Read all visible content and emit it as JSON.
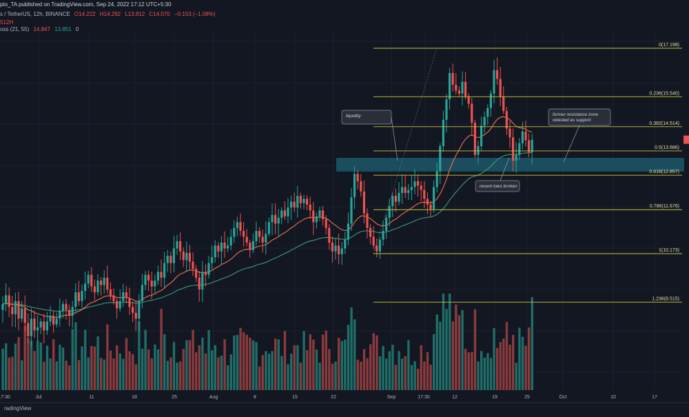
{
  "header": {
    "publish_line": "pto_TA published on TradingView.com, Sep 24, 2022 17:12 UTC+5:30",
    "symbol_line": "s / TetherUS, 12h, BINANCE",
    "ohlc": {
      "o": "O14.222",
      "h": "H14.292",
      "l": "L13.812",
      "c": "C14.070",
      "chg": "−0.153 (−1.08%)"
    },
    "indicator_value_line": "512H",
    "indicator_line": {
      "label": "oss (21, 55)",
      "v1": "14.847",
      "v2": "13.851",
      "v3": "0"
    }
  },
  "footer": {
    "brand": "radingView"
  },
  "colors": {
    "background": "#131722",
    "up": "#26a69a",
    "down": "#ef5350",
    "fib": "#c9c43e",
    "ema_fast": "#f0744f",
    "ema_slow": "#3f9c77",
    "zone": "#1c5767",
    "callout": "#2a2e39"
  },
  "chart_data": {
    "type": "candlestick",
    "timeframe": "12h",
    "x_tick_labels": [
      "17:30",
      "Jul",
      "11",
      "18",
      "25",
      "Aug",
      "8",
      "15",
      "22",
      "Sep",
      "17:30",
      "12",
      "19",
      "25",
      "Oct",
      "10",
      "17"
    ],
    "fib_levels": [
      {
        "ratio": 0,
        "price": 17.198,
        "label": "0(17.198)"
      },
      {
        "ratio": 0.236,
        "price": 15.54,
        "label": "0.236(15.540)"
      },
      {
        "ratio": 0.382,
        "price": 14.514,
        "label": "0.382(14.514)"
      },
      {
        "ratio": 0.5,
        "price": 13.686,
        "label": "0.5(13.686)"
      },
      {
        "ratio": 0.618,
        "price": 12.857,
        "label": "0.618(12.857)"
      },
      {
        "ratio": 0.786,
        "price": 11.676,
        "label": "0.786(11.676)"
      },
      {
        "ratio": 1,
        "price": 10.173,
        "label": "1(10.173)"
      },
      {
        "ratio": 1.236,
        "price": 8.515,
        "label": "1.236(8.515)"
      }
    ],
    "zone": {
      "top": 13.45,
      "bottom": 12.98
    },
    "annotations": [
      {
        "id": "liquidity",
        "lines": [
          "liquidity"
        ]
      },
      {
        "id": "recent-lows",
        "lines": [
          "recent lows broken"
        ]
      },
      {
        "id": "former-resistance",
        "lines": [
          "former resistance zone",
          "retested as support"
        ]
      }
    ],
    "candles_close": [
      8.45,
      8.75,
      8.35,
      8.1,
      8.55,
      7.95,
      8.3,
      7.8,
      7.35,
      7.95,
      7.55,
      7.65,
      7.85,
      7.55,
      7.85,
      8.05,
      7.75,
      7.95,
      8.2,
      8.45,
      8.25,
      8.05,
      8.35,
      8.85,
      8.55,
      8.9,
      9.15,
      9.45,
      9.05,
      8.85,
      9.25,
      9.1,
      9.35,
      8.95,
      8.75,
      8.55,
      8.3,
      8.55,
      8.85,
      8.65,
      8.35,
      8.15,
      7.95,
      8.55,
      9.1,
      9.45,
      9.25,
      9.05,
      9.25,
      9.55,
      9.35,
      9.85,
      10.1,
      9.85,
      10.35,
      10.6,
      10.25,
      9.95,
      10.2,
      9.9,
      9.65,
      9.35,
      8.95,
      9.55,
      9.45,
      9.85,
      10.05,
      10.45,
      10.25,
      10.55,
      10.35,
      10.45,
      10.75,
      11.05,
      11.25,
      10.95,
      10.75,
      10.55,
      10.3,
      10.6,
      10.95,
      10.75,
      10.55,
      10.85,
      11.25,
      11.5,
      11.2,
      11.4,
      11.65,
      11.45,
      11.75,
      11.95,
      11.75,
      12.15,
      11.9,
      12.05,
      11.85,
      11.65,
      11.25,
      11.45,
      11.65,
      11.35,
      11.05,
      10.55,
      10.25,
      10.45,
      10.15,
      10.35,
      10.65,
      11.2,
      12.1,
      12.9,
      12.65,
      12.3,
      11.55,
      11.05,
      10.75,
      10.45,
      10.25,
      10.65,
      10.95,
      11.4,
      11.8,
      12.15,
      11.95,
      12.25,
      12.45,
      12.25,
      12.35,
      12.45,
      12.65,
      12.5,
      12.35,
      12.05,
      11.85,
      11.7,
      12.45,
      13.0,
      13.85,
      14.75,
      15.45,
      16.35,
      15.95,
      15.75,
      15.65,
      16.05,
      15.55,
      15.3,
      14.65,
      13.55,
      13.85,
      14.55,
      14.85,
      15.15,
      15.65,
      16.45,
      16.15,
      15.55,
      15.05,
      14.45,
      14.15,
      13.35,
      13.55,
      13.95,
      14.35,
      14.05,
      13.65,
      14.07
    ]
  }
}
